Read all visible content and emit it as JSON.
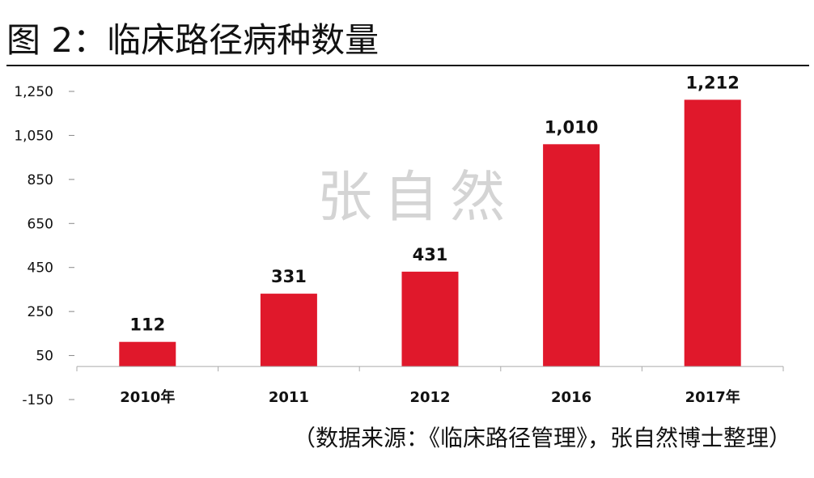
{
  "title": "图 2：临床路径病种数量",
  "watermark": "张自然",
  "source": "（数据来源：《临床路径管理》，张自然博士整理）",
  "chart_data": {
    "type": "bar",
    "categories": [
      "2010年",
      "2011",
      "2012",
      "2016",
      "2017年"
    ],
    "values": [
      112,
      331,
      431,
      1010,
      1212
    ],
    "data_labels": [
      "112",
      "331",
      "431",
      "1,010",
      "1,212"
    ],
    "yticks": [
      -150,
      50,
      250,
      450,
      650,
      850,
      1050,
      1250
    ],
    "ytick_labels": [
      "-150",
      "50",
      "250",
      "450",
      "650",
      "850",
      "1,050",
      "1,250"
    ],
    "ylim": [
      -150,
      1250
    ],
    "baseline": 0,
    "grid": false,
    "legend": "none",
    "bar_color": "#e0182b"
  }
}
